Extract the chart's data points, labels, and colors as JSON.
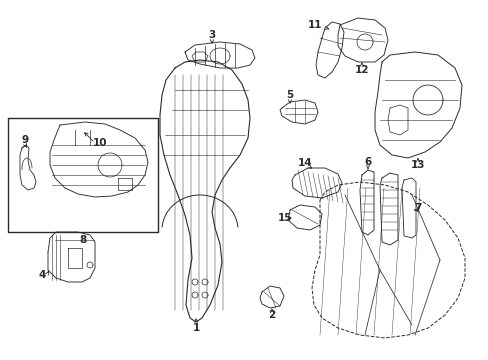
{
  "background_color": "#ffffff",
  "line_color": "#2a2a2a",
  "fig_width": 4.89,
  "fig_height": 3.6,
  "dpi": 100,
  "label_fontsize": 7.5,
  "label_fontweight": "bold",
  "lw": 0.7
}
